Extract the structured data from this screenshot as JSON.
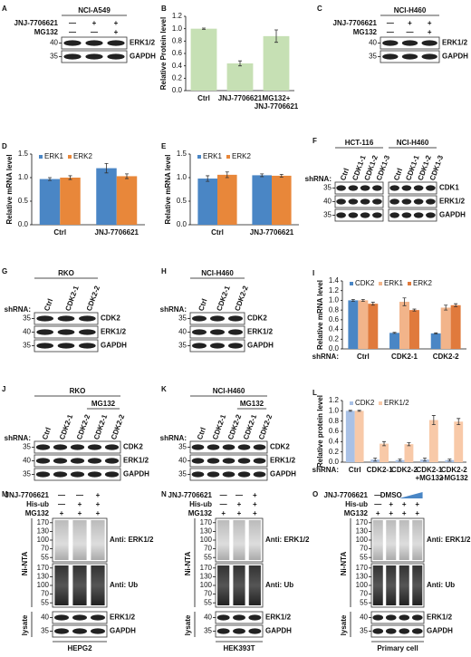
{
  "panels": [
    {
      "letter": "A",
      "groups": [
        {
          "title": "NCI-A549"
        }
      ],
      "treatments": [
        {
          "name": "JNJ-7706621",
          "signs": [
            "—",
            "+",
            "+"
          ]
        },
        {
          "name": "MG132",
          "signs": [
            "—",
            "—",
            "+"
          ]
        }
      ],
      "sections": [
        {
          "blots": [
            {
              "markers": [
                40
              ],
              "label": "ERK1/2"
            },
            {
              "markers": [
                35
              ],
              "label": "GAPDH"
            }
          ]
        }
      ]
    },
    {
      "letter": "B",
      "chart": {
        "type": "bar",
        "ylabel": "Relative Protein level",
        "categories": [
          "Ctrl",
          "JNJ-7706621",
          "MG132+\nJNJ-7706621"
        ],
        "values": [
          1.0,
          0.44,
          0.88
        ],
        "errors": [
          0.01,
          0.04,
          0.1
        ],
        "color": "#c6e0b4",
        "ylim": [
          0,
          1.2
        ],
        "yticks": [
          {
            "value": 0,
            "label": "0.0"
          },
          0.2,
          0.4,
          0.6,
          0.8,
          {
            "value": 1,
            "label": "1.0"
          },
          1.2
        ]
      }
    },
    {
      "letter": "C",
      "groups": [
        {
          "title": "NCI-H460"
        }
      ],
      "treatments": [
        {
          "name": "JNJ-7706621",
          "signs": [
            "—",
            "+",
            "+"
          ]
        },
        {
          "name": "MG132",
          "signs": [
            "—",
            "—",
            "+"
          ]
        }
      ],
      "sections": [
        {
          "blots": [
            {
              "markers": [
                40
              ],
              "label": "ERK1/2"
            },
            {
              "markers": [
                35
              ],
              "label": "GAPDH"
            }
          ]
        }
      ]
    },
    {
      "letter": "D",
      "chart": {
        "type": "bar",
        "ylabel": "Relative mRNA level",
        "categories": [
          "Ctrl",
          "JNJ-7706621"
        ],
        "series": [
          {
            "name": "ERK1",
            "color": "#4a86c5",
            "values": [
              0.97,
              1.2
            ],
            "errors": [
              0.03,
              0.1
            ]
          },
          {
            "name": "ERK2",
            "color": "#e8873a",
            "values": [
              1.0,
              1.03
            ],
            "errors": [
              0.04,
              0.05
            ]
          }
        ],
        "ylim": [
          0,
          1.5
        ],
        "yticks": [
          {
            "value": 0,
            "label": "0.0"
          },
          0.5,
          {
            "value": 1,
            "label": "1.0"
          },
          1.5
        ]
      }
    },
    {
      "letter": "E",
      "chart": {
        "type": "bar",
        "ylabel": "Relative mRNA level",
        "categories": [
          "Ctrl",
          "JNJ-7706621"
        ],
        "series": [
          {
            "name": "ERK1",
            "color": "#4a86c5",
            "values": [
              0.98,
              1.05
            ],
            "errors": [
              0.06,
              0.03
            ]
          },
          {
            "name": "ERK2",
            "color": "#e8873a",
            "values": [
              1.06,
              1.04
            ],
            "errors": [
              0.06,
              0.03
            ]
          }
        ],
        "ylim": [
          0,
          1.5
        ],
        "yticks": [
          {
            "value": 0,
            "label": "0.0"
          },
          0.5,
          {
            "value": 1,
            "label": "1.0"
          },
          1.5
        ]
      }
    },
    {
      "letter": "F",
      "shrna": "shRNA:",
      "groups": [
        {
          "title": "HCT-116",
          "lanes": [
            "Ctrl",
            "CDK1-1",
            "CDK1-2",
            "CDK1-3"
          ]
        },
        {
          "title": "NCI-H460",
          "lanes": [
            "Ctrl",
            "CDK1-1",
            "CDK1-2",
            "CDK1-3"
          ]
        }
      ],
      "sections": [
        {
          "blots": [
            {
              "markers": [
                35
              ],
              "label": "CDK1"
            },
            {
              "markers": [
                40
              ],
              "label": "ERK1/2"
            },
            {
              "markers": [
                35
              ],
              "label": "GAPDH"
            }
          ]
        }
      ]
    },
    {
      "letter": "G",
      "shrna": "shRNA:",
      "groups": [
        {
          "title": "RKO",
          "lanes": [
            "Ctrl",
            "CDK2-1",
            "CDK2-2"
          ]
        }
      ],
      "sections": [
        {
          "blots": [
            {
              "markers": [
                35
              ],
              "label": "CDK2"
            },
            {
              "markers": [
                40
              ],
              "label": "ERK1/2"
            },
            {
              "markers": [
                35
              ],
              "label": "GAPDH"
            }
          ]
        }
      ]
    },
    {
      "letter": "H",
      "shrna": "shRNA:",
      "groups": [
        {
          "title": "NCI-H460",
          "lanes": [
            "Ctrl",
            "CDK2-1",
            "CDK2-2"
          ]
        }
      ],
      "sections": [
        {
          "blots": [
            {
              "markers": [
                35
              ],
              "label": "CDK2"
            },
            {
              "markers": [
                40
              ],
              "label": "ERK1/2"
            },
            {
              "markers": [
                35
              ],
              "label": "GAPDH"
            }
          ]
        }
      ]
    },
    {
      "letter": "I",
      "chart": {
        "type": "bar",
        "ylabel": "Relative mRNA level",
        "row_label": "shRNA:",
        "categories": [
          "Ctrl",
          "CDK2-1",
          "CDK2-2"
        ],
        "series": [
          {
            "name": "CDK2",
            "color": "#4a86c5",
            "values": [
              1.0,
              0.33,
              0.32
            ],
            "errors": [
              0.02,
              0.01,
              0.01
            ]
          },
          {
            "name": "ERK1",
            "color": "#f2b48a",
            "values": [
              1.0,
              0.97,
              0.85
            ],
            "errors": [
              0.02,
              0.08,
              0.05
            ]
          },
          {
            "name": "ERK2",
            "color": "#e07a3c",
            "values": [
              0.93,
              0.8,
              0.9
            ],
            "errors": [
              0.03,
              0.02,
              0.03
            ]
          }
        ],
        "ylim": [
          0,
          1.4
        ],
        "yticks": [
          {
            "value": 0,
            "label": "0.0"
          },
          0.2,
          0.4,
          0.6,
          0.8,
          {
            "value": 1,
            "label": "1.0"
          },
          1.2,
          1.4
        ]
      }
    },
    {
      "letter": "J",
      "shrna": "shRNA:",
      "over_label": "MG132",
      "groups": [
        {
          "title": "RKO",
          "lanes": [
            "Ctrl",
            "CDK2-1",
            "CDK2-2",
            "CDK2-1",
            "CDK2-2"
          ]
        }
      ],
      "sections": [
        {
          "blots": [
            {
              "markers": [
                35
              ],
              "label": "CDK2"
            },
            {
              "markers": [
                40
              ],
              "label": "ERK1/2"
            },
            {
              "markers": [
                35
              ],
              "label": "GAPDH"
            }
          ]
        }
      ]
    },
    {
      "letter": "K",
      "shrna": "shRNA:",
      "over_label": "MG132",
      "groups": [
        {
          "title": "NCI-H460",
          "lanes": [
            "Ctrl",
            "CDK2-1",
            "CDK2-2",
            "CDK2-1",
            "CDK2-2"
          ]
        }
      ],
      "sections": [
        {
          "blots": [
            {
              "markers": [
                35
              ],
              "label": "CDK2"
            },
            {
              "markers": [
                40
              ],
              "label": "ERK1/2"
            },
            {
              "markers": [
                35
              ],
              "label": "GAPDH"
            }
          ]
        }
      ]
    },
    {
      "letter": "L",
      "chart": {
        "type": "bar",
        "ylabel": "Relative protein level",
        "row_label": "shRNA:",
        "categories": [
          "Ctrl",
          "CDK2-1",
          "CDK2-2",
          "CDK2-1\n+MG132",
          "CDK2-2\n+MG132"
        ],
        "series": [
          {
            "name": "CDK2",
            "color": "#a9c1e6",
            "values": [
              1.0,
              0.05,
              0.04,
              0.05,
              0.04
            ],
            "errors": [
              0.01,
              0.03,
              0.02,
              0.03,
              0.02
            ]
          },
          {
            "name": "ERK1/2",
            "color": "#f8c9a8",
            "values": [
              1.0,
              0.36,
              0.35,
              0.82,
              0.79
            ],
            "errors": [
              0.01,
              0.04,
              0.03,
              0.09,
              0.06
            ]
          }
        ],
        "ylim": [
          0,
          1.2
        ],
        "yticks": [
          {
            "value": 0,
            "label": "0.0"
          },
          0.2,
          0.4,
          0.6,
          0.8,
          {
            "value": 1,
            "label": "1.0"
          },
          1.2
        ]
      }
    },
    {
      "letter": "M",
      "treatments": [
        {
          "name": "JNJ-7706621",
          "signs": [
            "—",
            "—",
            "+"
          ]
        },
        {
          "name": "His-ub",
          "signs": [
            "—",
            "+",
            "+"
          ]
        },
        {
          "name": "MG132",
          "signs": [
            "+",
            "+",
            "+"
          ]
        }
      ],
      "sections": [
        {
          "label": "Ni-NTA",
          "blots": [
            {
              "markers": [
                170,
                130,
                100,
                70,
                55
              ],
              "label": "Anti: ERK1/2"
            },
            {
              "markers": [
                170,
                130,
                100,
                70,
                55
              ],
              "label": "Anti: Ub"
            }
          ]
        },
        {
          "label": "lysate",
          "blots": [
            {
              "markers": [
                40
              ],
              "label": "ERK1/2"
            },
            {
              "markers": [
                35
              ],
              "label": "GAPDH"
            }
          ]
        }
      ],
      "footer": "HEPG2"
    },
    {
      "letter": "N",
      "treatments": [
        {
          "name": "JNJ-7706621",
          "signs": [
            "—",
            "—",
            "+"
          ]
        },
        {
          "name": "His-ub",
          "signs": [
            "—",
            "+",
            "+"
          ]
        },
        {
          "name": "MG132",
          "signs": [
            "+",
            "+",
            "+"
          ]
        }
      ],
      "sections": [
        {
          "label": "Ni-NTA",
          "blots": [
            {
              "markers": [
                170,
                130,
                100,
                70,
                55
              ],
              "label": "Anti: ERK1/2"
            },
            {
              "markers": [
                170,
                130,
                100,
                70,
                55
              ],
              "label": "Anti: Ub"
            }
          ]
        },
        {
          "label": "lysate",
          "blots": [
            {
              "markers": [
                40
              ],
              "label": "ERK1/2"
            },
            {
              "markers": [
                35
              ],
              "label": "GAPDH"
            }
          ]
        }
      ],
      "footer": "HEK393T"
    },
    {
      "letter": "O",
      "treatments": [
        {
          "name": "JNJ-7706621",
          "signs": [
            "—",
            "DMSO"
          ]
        },
        {
          "name": "His-ub",
          "signs": [
            "—",
            "+",
            "+",
            "+"
          ]
        },
        {
          "name": "MG132",
          "signs": [
            "+",
            "+",
            "+",
            "+"
          ]
        }
      ],
      "sections": [
        {
          "label": "Ni-NTA",
          "blots": [
            {
              "markers": [
                170,
                130,
                100,
                70,
                55
              ],
              "label": "Anti: ERK1/2"
            },
            {
              "markers": [
                170,
                130,
                100,
                70,
                55
              ],
              "label": "Anti: Ub"
            }
          ]
        },
        {
          "label": "lysate",
          "blots": [
            {
              "markers": [
                40
              ],
              "label": "ERK1/2"
            },
            {
              "markers": [
                35
              ],
              "label": "GAPDH"
            }
          ]
        }
      ],
      "footer": "Primary cell"
    }
  ]
}
